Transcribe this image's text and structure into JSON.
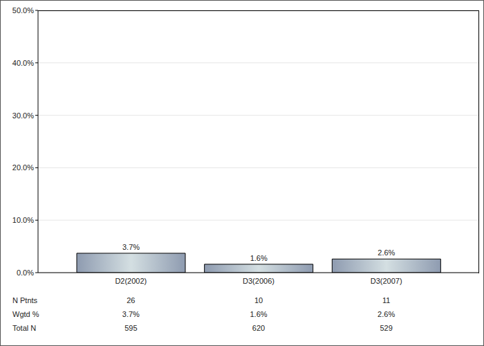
{
  "chart_data": {
    "type": "bar",
    "categories": [
      "D2(2002)",
      "D3(2006)",
      "D3(2007)"
    ],
    "values": [
      3.7,
      1.6,
      2.6
    ],
    "value_labels": [
      "3.7%",
      "1.6%",
      "2.6%"
    ],
    "data_labels": true,
    "color": "#8e9bb0",
    "ylim": [
      0,
      50
    ],
    "yticks": [
      {
        "value": 0,
        "label": "0.0%"
      },
      {
        "value": 10,
        "label": "10.0%"
      },
      {
        "value": 20,
        "label": "20.0%"
      },
      {
        "value": 30,
        "label": "30.0%"
      },
      {
        "value": 40,
        "label": "40.0%"
      },
      {
        "value": 50,
        "label": "50.0%"
      }
    ],
    "grid": true,
    "table": {
      "rows": [
        {
          "label": "N Ptnts",
          "values": [
            26,
            10,
            11
          ]
        },
        {
          "label": "Wgtd %",
          "values": [
            "3.7%",
            "1.6%",
            "2.6%"
          ]
        },
        {
          "label": "Total N",
          "values": [
            595,
            620,
            529
          ]
        }
      ]
    }
  }
}
